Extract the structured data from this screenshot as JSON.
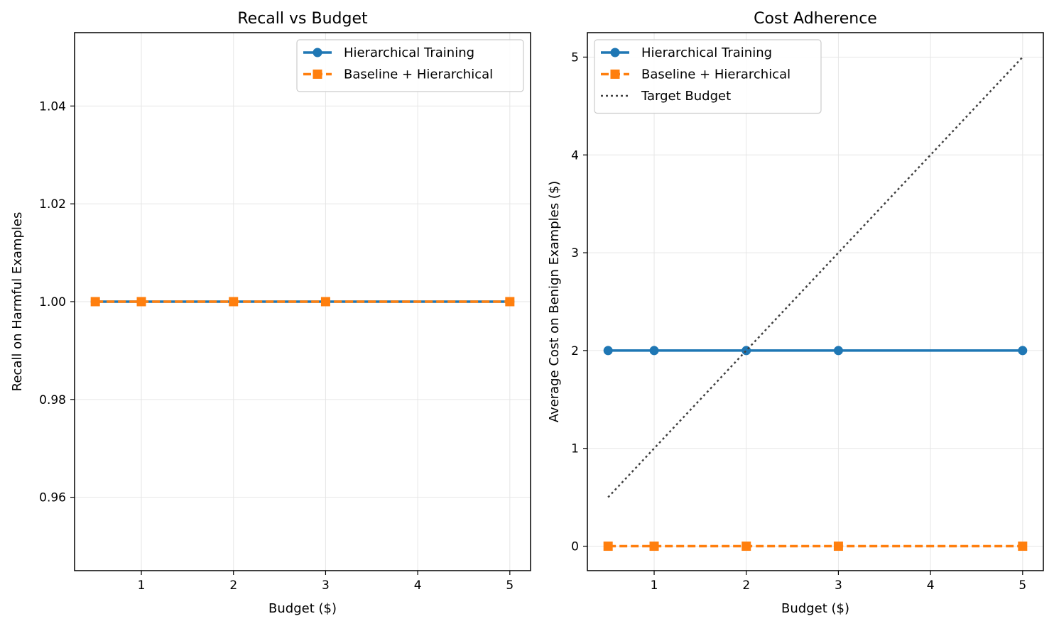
{
  "chart_data": [
    {
      "type": "line",
      "title": "Recall vs Budget",
      "xlabel": "Budget ($)",
      "ylabel": "Recall on Harmful Examples",
      "xlim": [
        0.275,
        5.225
      ],
      "ylim": [
        0.945,
        1.055
      ],
      "xticks": [
        1,
        2,
        3,
        4,
        5
      ],
      "yticks": [
        0.96,
        0.98,
        1.0,
        1.02,
        1.04
      ],
      "xtick_labels": [
        "1",
        "2",
        "3",
        "4",
        "5"
      ],
      "ytick_labels": [
        "0.96",
        "0.98",
        "1.00",
        "1.02",
        "1.04"
      ],
      "grid": true,
      "legend_position": "top-right",
      "series": [
        {
          "name": "Hierarchical Training",
          "x": [
            0.5,
            1,
            2,
            3,
            5
          ],
          "y": [
            1.0,
            1.0,
            1.0,
            1.0,
            1.0
          ],
          "color": "#1f77b4",
          "marker": "circle",
          "linestyle": "solid"
        },
        {
          "name": "Baseline + Hierarchical",
          "x": [
            0.5,
            1,
            2,
            3,
            5
          ],
          "y": [
            1.0,
            1.0,
            1.0,
            1.0,
            1.0
          ],
          "color": "#ff7f0e",
          "marker": "square",
          "linestyle": "dashed"
        }
      ]
    },
    {
      "type": "line",
      "title": "Cost Adherence",
      "xlabel": "Budget ($)",
      "ylabel": "Average Cost on Benign Examples ($)",
      "xlim": [
        0.275,
        5.225
      ],
      "ylim": [
        -0.25,
        5.25
      ],
      "xticks": [
        1,
        2,
        3,
        4,
        5
      ],
      "yticks": [
        0,
        1,
        2,
        3,
        4,
        5
      ],
      "xtick_labels": [
        "1",
        "2",
        "3",
        "4",
        "5"
      ],
      "ytick_labels": [
        "0",
        "1",
        "2",
        "3",
        "4",
        "5"
      ],
      "grid": true,
      "legend_position": "top-left",
      "series": [
        {
          "name": "Hierarchical Training",
          "x": [
            0.5,
            1,
            2,
            3,
            5
          ],
          "y": [
            2,
            2,
            2,
            2,
            2
          ],
          "color": "#1f77b4",
          "marker": "circle",
          "linestyle": "solid"
        },
        {
          "name": "Baseline + Hierarchical",
          "x": [
            0.5,
            1,
            2,
            3,
            5
          ],
          "y": [
            0,
            0,
            0,
            0,
            0
          ],
          "color": "#ff7f0e",
          "marker": "square",
          "linestyle": "dashed"
        },
        {
          "name": "Target Budget",
          "x": [
            0.5,
            5
          ],
          "y": [
            0.5,
            5
          ],
          "color": "#404040",
          "marker": "none",
          "linestyle": "dotted"
        }
      ]
    }
  ]
}
